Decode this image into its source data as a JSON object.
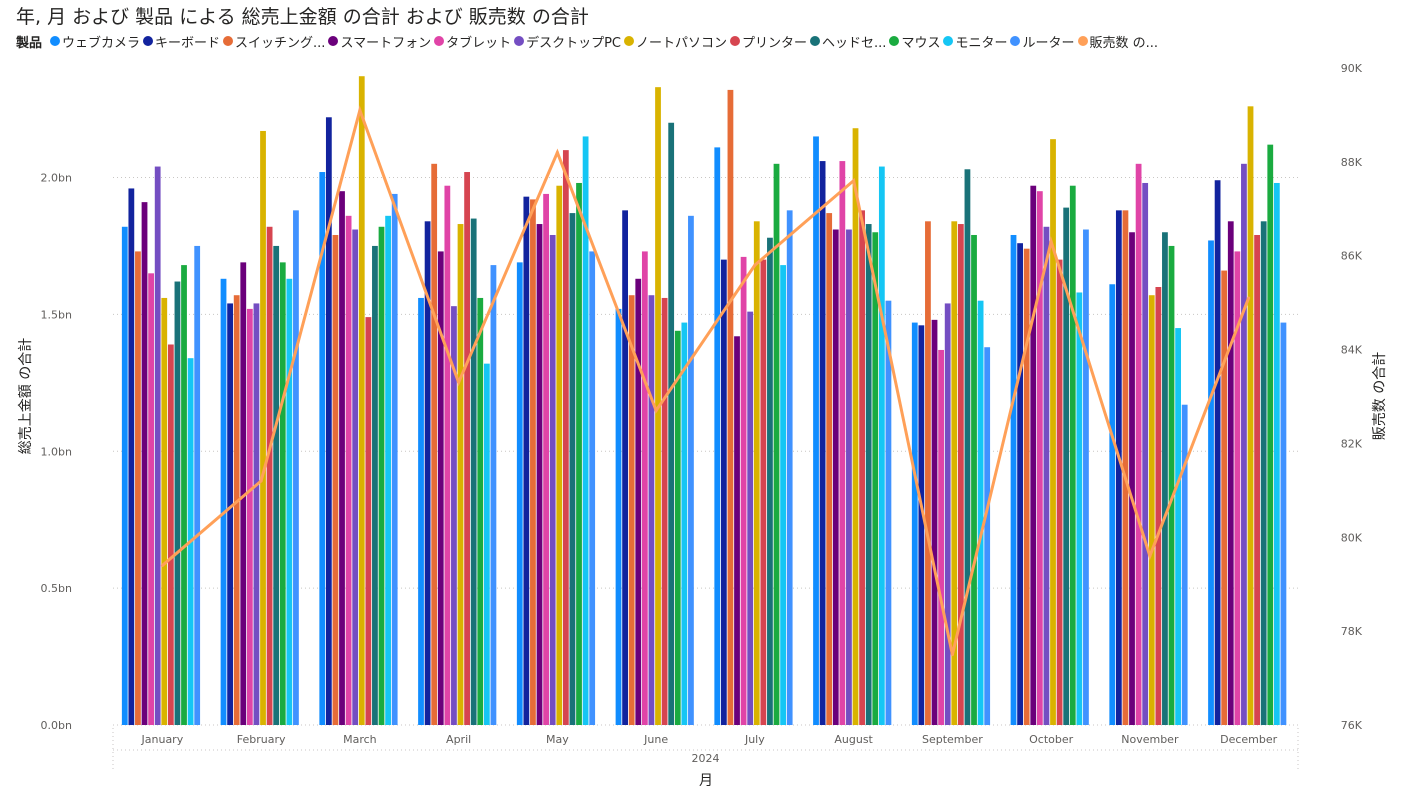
{
  "title": "年, 月 および 製品 による 総売上金額 の合計 および 販売数 の合計",
  "legend": {
    "title": "製品",
    "entries": [
      {
        "label": "ウェブカメラ",
        "color": "#118DFF"
      },
      {
        "label": "キーボード",
        "color": "#12239E"
      },
      {
        "label": "スイッチング...",
        "color": "#E66C37"
      },
      {
        "label": "スマートフォン",
        "color": "#6B007B"
      },
      {
        "label": "タブレット",
        "color": "#E044A7"
      },
      {
        "label": "デスクトップPC",
        "color": "#744EC2"
      },
      {
        "label": "ノートパソコン",
        "color": "#D9B300"
      },
      {
        "label": "プリンター",
        "color": "#D64550"
      },
      {
        "label": "ヘッドセ...",
        "color": "#197278"
      },
      {
        "label": "マウス",
        "color": "#1AAB40"
      },
      {
        "label": "モニター",
        "color": "#15C6F4"
      },
      {
        "label": "ルーター",
        "color": "#4092FF"
      },
      {
        "label": "販売数 の...",
        "color": "#FFA058"
      }
    ]
  },
  "chart_data": {
    "type": "bar",
    "title": "年, 月 および 製品 による 総売上金額 の合計 および 販売数 の合計",
    "xlabel": "月",
    "x_group_label": "2024",
    "ylabel": "総売上金額 の合計",
    "y2label": "販売数 の合計",
    "ylim": [
      0,
      2.4
    ],
    "y2lim": [
      76000,
      90000
    ],
    "y_ticks": [
      "0.0bn",
      "0.5bn",
      "1.0bn",
      "1.5bn",
      "2.0bn"
    ],
    "y2_ticks": [
      "76K",
      "78K",
      "80K",
      "82K",
      "84K",
      "86K",
      "88K",
      "90K"
    ],
    "gridlines": true,
    "legend_position": "top",
    "categories": [
      "January",
      "February",
      "March",
      "April",
      "May",
      "June",
      "July",
      "August",
      "September",
      "October",
      "November",
      "December"
    ],
    "series": [
      {
        "name": "ウェブカメラ",
        "color": "#118DFF",
        "values": [
          1.82,
          1.63,
          2.02,
          1.56,
          1.69,
          1.52,
          2.11,
          2.15,
          1.47,
          1.79,
          1.61,
          1.77
        ]
      },
      {
        "name": "キーボード",
        "color": "#12239E",
        "values": [
          1.96,
          1.54,
          2.22,
          1.84,
          1.93,
          1.88,
          1.7,
          2.06,
          1.46,
          1.76,
          1.88,
          1.99
        ]
      },
      {
        "name": "スイッチング...",
        "color": "#E66C37",
        "values": [
          1.73,
          1.57,
          1.79,
          2.05,
          1.92,
          1.57,
          2.32,
          1.87,
          1.84,
          1.74,
          1.88,
          1.66
        ]
      },
      {
        "name": "スマートフォン",
        "color": "#6B007B",
        "values": [
          1.91,
          1.69,
          1.95,
          1.73,
          1.83,
          1.63,
          1.42,
          1.81,
          1.48,
          1.97,
          1.8,
          1.84
        ]
      },
      {
        "name": "タブレット",
        "color": "#E044A7",
        "values": [
          1.65,
          1.52,
          1.86,
          1.97,
          1.94,
          1.73,
          1.71,
          2.06,
          1.37,
          1.95,
          2.05,
          1.73
        ]
      },
      {
        "name": "デスクトップPC",
        "color": "#744EC2",
        "values": [
          2.04,
          1.54,
          1.81,
          1.53,
          1.79,
          1.57,
          1.51,
          1.81,
          1.54,
          1.82,
          1.98,
          2.05
        ]
      },
      {
        "name": "ノートパソコン",
        "color": "#D9B300",
        "values": [
          1.56,
          2.17,
          2.37,
          1.83,
          1.97,
          2.33,
          1.84,
          2.18,
          1.84,
          2.14,
          1.57,
          2.26
        ]
      },
      {
        "name": "プリンター",
        "color": "#D64550",
        "values": [
          1.39,
          1.82,
          1.49,
          2.02,
          2.1,
          1.56,
          1.7,
          1.88,
          1.83,
          1.7,
          1.6,
          1.79
        ]
      },
      {
        "name": "ヘッドセ...",
        "color": "#197278",
        "values": [
          1.62,
          1.75,
          1.75,
          1.85,
          1.87,
          2.2,
          1.78,
          1.83,
          2.03,
          1.89,
          1.8,
          1.84
        ]
      },
      {
        "name": "マウス",
        "color": "#1AAB40",
        "values": [
          1.68,
          1.69,
          1.82,
          1.56,
          1.98,
          1.44,
          2.05,
          1.8,
          1.79,
          1.97,
          1.75,
          2.12
        ]
      },
      {
        "name": "モニター",
        "color": "#15C6F4",
        "values": [
          1.34,
          1.63,
          1.86,
          1.32,
          2.15,
          1.47,
          1.68,
          2.04,
          1.55,
          1.58,
          1.45,
          1.98
        ]
      },
      {
        "name": "ルーター",
        "color": "#4092FF",
        "values": [
          1.75,
          1.88,
          1.94,
          1.68,
          1.73,
          1.86,
          1.88,
          1.55,
          1.38,
          1.81,
          1.17,
          1.47
        ]
      }
    ],
    "line_series": {
      "name": "販売数 の合計",
      "color": "#FFA058",
      "axis": "secondary",
      "values": [
        79400,
        81200,
        89100,
        83300,
        88200,
        82700,
        85800,
        87600,
        77500,
        86300,
        79600,
        85100
      ]
    }
  }
}
